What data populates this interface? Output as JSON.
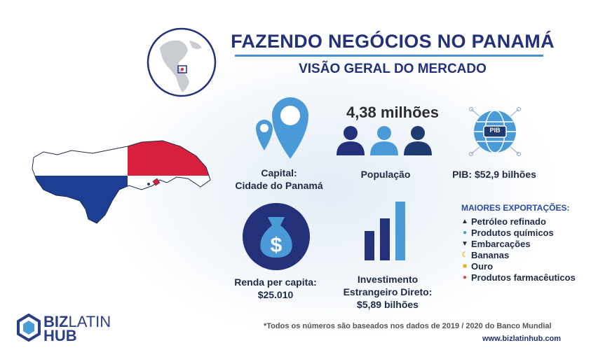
{
  "header": {
    "title": "FAZENDO NEGÓCIOS NO PANAMÁ",
    "subtitle": "VISÃO GERAL DO MERCADO"
  },
  "stats": {
    "capital": {
      "label_line1": "Capital:",
      "label_line2": "Cidade do Panamá",
      "icon": "map-pin-icon"
    },
    "population": {
      "value": "4,38 milhões",
      "label": "População",
      "icon": "people-icon"
    },
    "gdp": {
      "badge": "PIB",
      "label": "PIB: $52,9 bilhões",
      "icon": "globe-icon"
    },
    "income": {
      "label_line1": "Renda per capita:",
      "label_line2": "$25.010",
      "icon": "money-bag-icon"
    },
    "fdi": {
      "label_line1": "Investimento",
      "label_line2": "Estrangeiro Direto:",
      "label_line3": "$5,89 bilhões",
      "icon": "bar-chart-icon"
    }
  },
  "exports": {
    "title": "MAIORES EXPORTAÇÕES:",
    "items": [
      {
        "label": "Petróleo refinado",
        "icon": "oil-pump-icon"
      },
      {
        "label": "Produtos químicos",
        "icon": "flask-icon"
      },
      {
        "label": "Embarcações",
        "icon": "ship-icon"
      },
      {
        "label": "Bananas",
        "icon": "banana-icon"
      },
      {
        "label": "Ouro",
        "icon": "gold-icon"
      },
      {
        "label": "Produtos farmacêuticos",
        "icon": "pill-icon"
      }
    ]
  },
  "footer": {
    "note": "*Todos os números são baseados nos dados de 2019 / 2020 do Banco Mundial",
    "website": "www.bizlatinhub.com"
  },
  "logo": {
    "line1_bold": "BIZ",
    "line1_light": "LATIN",
    "line2": "HUB"
  },
  "colors": {
    "navy": "#23307a",
    "blue": "#4a90d0",
    "dark_navy": "#1f3a6e",
    "flag_red": "#d81f3b",
    "flag_blue": "#1c3f93"
  }
}
